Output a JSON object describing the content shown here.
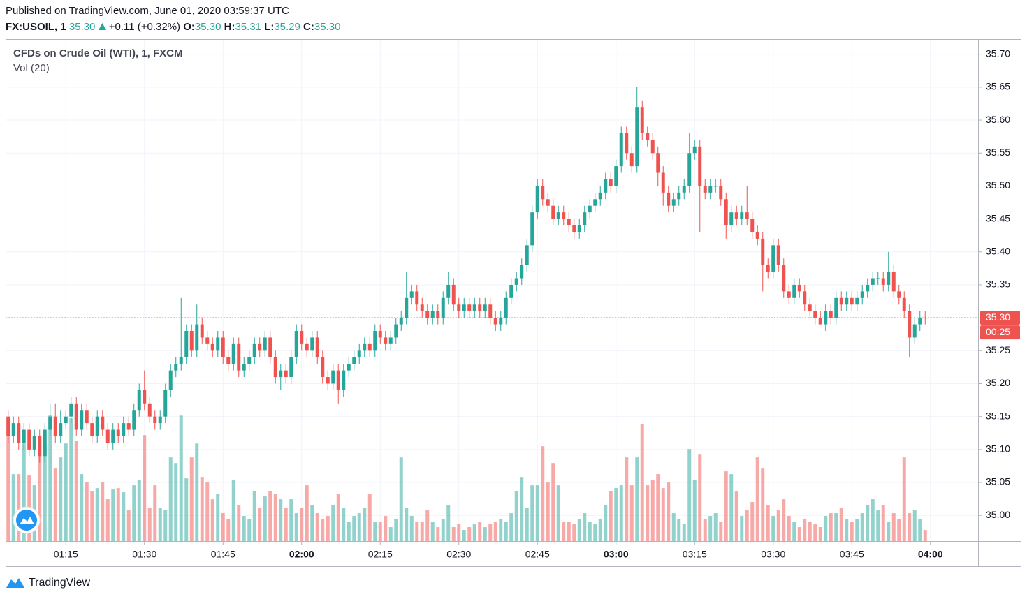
{
  "header": {
    "published": "Published on TradingView.com, June 01, 2020 03:59:37 UTC",
    "symbol": "FX:USOIL, 1",
    "last": "35.30",
    "change": "+0.11 (+0.32%)",
    "ohlc": [
      {
        "label": "O:",
        "value": "35.30"
      },
      {
        "label": "H:",
        "value": "35.31"
      },
      {
        "label": "L:",
        "value": "35.29"
      },
      {
        "label": "C:",
        "value": "35.30"
      }
    ]
  },
  "chart_data": {
    "type": "candlestick",
    "title": "CFDs on Crude Oil (WTI), 1, FXCM",
    "volume_label": "Vol (20)",
    "up_color": "#26a69a",
    "down_color": "#ef5350",
    "grid": true,
    "ylim": [
      34.961,
      35.723
    ],
    "yticks": [
      {
        "value": 35.0,
        "label": "35.00"
      },
      {
        "value": 35.05,
        "label": "35.05"
      },
      {
        "value": 35.1,
        "label": "35.10"
      },
      {
        "value": 35.15,
        "label": "35.15"
      },
      {
        "value": 35.2,
        "label": "35.20"
      },
      {
        "value": 35.25,
        "label": "35.25"
      },
      {
        "value": 35.3,
        "label": "35.30"
      },
      {
        "value": 35.35,
        "label": "35.35"
      },
      {
        "value": 35.4,
        "label": "35.40"
      },
      {
        "value": 35.45,
        "label": "35.45"
      },
      {
        "value": 35.5,
        "label": "35.50"
      },
      {
        "value": 35.55,
        "label": "35.55"
      },
      {
        "value": 35.6,
        "label": "35.60"
      },
      {
        "value": 35.65,
        "label": "35.65"
      },
      {
        "value": 35.7,
        "label": "35.70"
      }
    ],
    "xlim": [
      -0.5,
      185.1
    ],
    "xticks": [
      {
        "value": 11,
        "label": "01:15"
      },
      {
        "value": 26,
        "label": "01:30"
      },
      {
        "value": 41,
        "label": "01:45"
      },
      {
        "value": 56,
        "label": "02:00"
      },
      {
        "value": 71,
        "label": "02:15"
      },
      {
        "value": 86,
        "label": "02:30"
      },
      {
        "value": 101,
        "label": "02:45"
      },
      {
        "value": 116,
        "label": "03:00"
      },
      {
        "value": 131,
        "label": "03:15"
      },
      {
        "value": 146,
        "label": "03:30"
      },
      {
        "value": 161,
        "label": "03:45"
      },
      {
        "value": 176,
        "label": "04:00"
      }
    ],
    "last_price": {
      "value": 35.3,
      "label": "35.30"
    },
    "countdown": "00:25",
    "vlim": [
      0,
      360
    ],
    "ohlc": [
      [
        35.15,
        35.16,
        35.11,
        35.12
      ],
      [
        35.12,
        35.15,
        35.11,
        35.14
      ],
      [
        35.14,
        35.15,
        35.1,
        35.11
      ],
      [
        35.11,
        35.14,
        35.1,
        35.13
      ],
      [
        35.13,
        35.14,
        35.09,
        35.1
      ],
      [
        35.1,
        35.13,
        35.09,
        35.12
      ],
      [
        35.12,
        35.13,
        35.08,
        35.09
      ],
      [
        35.09,
        35.14,
        35.08,
        35.13
      ],
      [
        35.13,
        35.17,
        35.12,
        35.15
      ],
      [
        35.15,
        35.17,
        35.11,
        35.12
      ],
      [
        35.12,
        35.16,
        35.11,
        35.14
      ],
      [
        35.14,
        35.16,
        35.13,
        35.15
      ],
      [
        35.15,
        35.18,
        35.14,
        35.17
      ],
      [
        35.17,
        35.18,
        35.12,
        35.13
      ],
      [
        35.13,
        35.17,
        35.12,
        35.16
      ],
      [
        35.16,
        35.17,
        35.13,
        35.14
      ],
      [
        35.14,
        35.15,
        35.11,
        35.12
      ],
      [
        35.12,
        35.16,
        35.11,
        35.15
      ],
      [
        35.15,
        35.16,
        35.12,
        35.13
      ],
      [
        35.13,
        35.14,
        35.1,
        35.11
      ],
      [
        35.11,
        35.14,
        35.1,
        35.13
      ],
      [
        35.13,
        35.14,
        35.11,
        35.12
      ],
      [
        35.12,
        35.15,
        35.11,
        35.14
      ],
      [
        35.14,
        35.15,
        35.12,
        35.13
      ],
      [
        35.13,
        35.17,
        35.12,
        35.16
      ],
      [
        35.16,
        35.2,
        35.15,
        35.19
      ],
      [
        35.19,
        35.22,
        35.16,
        35.17
      ],
      [
        35.17,
        35.18,
        35.14,
        35.15
      ],
      [
        35.15,
        35.16,
        35.13,
        35.14
      ],
      [
        35.14,
        35.16,
        35.13,
        35.15
      ],
      [
        35.15,
        35.2,
        35.14,
        35.19
      ],
      [
        35.19,
        35.23,
        35.18,
        35.22
      ],
      [
        35.22,
        35.24,
        35.21,
        35.23
      ],
      [
        35.23,
        35.33,
        35.22,
        35.24
      ],
      [
        35.24,
        35.29,
        35.23,
        35.28
      ],
      [
        35.28,
        35.29,
        35.24,
        35.25
      ],
      [
        35.25,
        35.32,
        35.24,
        35.29
      ],
      [
        35.29,
        35.3,
        35.26,
        35.27
      ],
      [
        35.27,
        35.28,
        35.25,
        35.26
      ],
      [
        35.26,
        35.27,
        35.24,
        35.25
      ],
      [
        35.25,
        35.28,
        35.24,
        35.27
      ],
      [
        35.27,
        35.28,
        35.23,
        35.24
      ],
      [
        35.24,
        35.25,
        35.22,
        35.23
      ],
      [
        35.23,
        35.27,
        35.22,
        35.26
      ],
      [
        35.26,
        35.27,
        35.21,
        35.22
      ],
      [
        35.22,
        35.24,
        35.21,
        35.23
      ],
      [
        35.23,
        35.25,
        35.22,
        35.24
      ],
      [
        35.24,
        35.27,
        35.23,
        35.26
      ],
      [
        35.26,
        35.27,
        35.24,
        35.25
      ],
      [
        35.25,
        35.28,
        35.24,
        35.27
      ],
      [
        35.27,
        35.28,
        35.23,
        35.24
      ],
      [
        35.24,
        35.25,
        35.2,
        35.21
      ],
      [
        35.21,
        35.23,
        35.19,
        35.22
      ],
      [
        35.22,
        35.23,
        35.2,
        35.21
      ],
      [
        35.21,
        35.25,
        35.2,
        35.24
      ],
      [
        35.24,
        35.29,
        35.23,
        35.28
      ],
      [
        35.28,
        35.29,
        35.25,
        35.26
      ],
      [
        35.26,
        35.27,
        35.24,
        35.25
      ],
      [
        35.25,
        35.28,
        35.24,
        35.27
      ],
      [
        35.27,
        35.28,
        35.23,
        35.24
      ],
      [
        35.24,
        35.25,
        35.2,
        35.21
      ],
      [
        35.21,
        35.22,
        35.19,
        35.2
      ],
      [
        35.2,
        35.23,
        35.19,
        35.22
      ],
      [
        35.22,
        35.23,
        35.17,
        35.19
      ],
      [
        35.19,
        35.23,
        35.18,
        35.22
      ],
      [
        35.22,
        35.24,
        35.21,
        35.23
      ],
      [
        35.23,
        35.25,
        35.22,
        35.24
      ],
      [
        35.24,
        35.26,
        35.23,
        35.25
      ],
      [
        35.25,
        35.27,
        35.24,
        35.26
      ],
      [
        35.26,
        35.27,
        35.24,
        35.25
      ],
      [
        35.25,
        35.29,
        35.24,
        35.28
      ],
      [
        35.28,
        35.29,
        35.26,
        35.27
      ],
      [
        35.27,
        35.28,
        35.25,
        35.26
      ],
      [
        35.26,
        35.28,
        35.25,
        35.27
      ],
      [
        35.27,
        35.3,
        35.26,
        35.29
      ],
      [
        35.29,
        35.31,
        35.28,
        35.3
      ],
      [
        35.3,
        35.37,
        35.29,
        35.33
      ],
      [
        35.33,
        35.35,
        35.32,
        35.34
      ],
      [
        35.34,
        35.35,
        35.31,
        35.32
      ],
      [
        35.32,
        35.33,
        35.3,
        35.31
      ],
      [
        35.31,
        35.32,
        35.29,
        35.3
      ],
      [
        35.3,
        35.32,
        35.29,
        35.31
      ],
      [
        35.31,
        35.32,
        35.29,
        35.3
      ],
      [
        35.3,
        35.34,
        35.29,
        35.33
      ],
      [
        35.33,
        35.37,
        35.32,
        35.35
      ],
      [
        35.35,
        35.36,
        35.31,
        35.32
      ],
      [
        35.32,
        35.33,
        35.3,
        35.31
      ],
      [
        35.31,
        35.33,
        35.3,
        35.32
      ],
      [
        35.32,
        35.33,
        35.3,
        35.31
      ],
      [
        35.31,
        35.33,
        35.3,
        35.32
      ],
      [
        35.32,
        35.33,
        35.3,
        35.31
      ],
      [
        35.31,
        35.33,
        35.3,
        35.32
      ],
      [
        35.32,
        35.33,
        35.29,
        35.3
      ],
      [
        35.3,
        35.31,
        35.28,
        35.29
      ],
      [
        35.29,
        35.31,
        35.28,
        35.3
      ],
      [
        35.3,
        35.34,
        35.29,
        35.33
      ],
      [
        35.33,
        35.36,
        35.32,
        35.35
      ],
      [
        35.35,
        35.37,
        35.34,
        35.36
      ],
      [
        35.36,
        35.39,
        35.35,
        35.38
      ],
      [
        35.38,
        35.42,
        35.37,
        35.41
      ],
      [
        35.41,
        35.47,
        35.4,
        35.46
      ],
      [
        35.46,
        35.51,
        35.45,
        35.5
      ],
      [
        35.5,
        35.51,
        35.47,
        35.48
      ],
      [
        35.48,
        35.49,
        35.46,
        35.47
      ],
      [
        35.47,
        35.48,
        35.44,
        35.45
      ],
      [
        35.45,
        35.47,
        35.44,
        35.46
      ],
      [
        35.46,
        35.47,
        35.44,
        35.45
      ],
      [
        35.45,
        35.46,
        35.43,
        35.44
      ],
      [
        35.44,
        35.45,
        35.42,
        35.43
      ],
      [
        35.43,
        35.45,
        35.42,
        35.44
      ],
      [
        35.44,
        35.47,
        35.43,
        35.46
      ],
      [
        35.46,
        35.48,
        35.45,
        35.47
      ],
      [
        35.47,
        35.49,
        35.46,
        35.48
      ],
      [
        35.48,
        35.5,
        35.47,
        35.49
      ],
      [
        35.49,
        35.52,
        35.48,
        35.51
      ],
      [
        35.51,
        35.52,
        35.49,
        35.5
      ],
      [
        35.5,
        35.54,
        35.49,
        35.53
      ],
      [
        35.53,
        35.59,
        35.52,
        35.58
      ],
      [
        35.58,
        35.59,
        35.54,
        35.55
      ],
      [
        35.55,
        35.56,
        35.52,
        35.53
      ],
      [
        35.53,
        35.65,
        35.52,
        35.62
      ],
      [
        35.62,
        35.63,
        35.57,
        35.58
      ],
      [
        35.58,
        35.59,
        35.56,
        35.57
      ],
      [
        35.57,
        35.58,
        35.54,
        35.55
      ],
      [
        35.55,
        35.56,
        35.5,
        35.52
      ],
      [
        35.52,
        35.53,
        35.47,
        35.49
      ],
      [
        35.49,
        35.5,
        35.46,
        35.47
      ],
      [
        35.47,
        35.49,
        35.46,
        35.48
      ],
      [
        35.48,
        35.5,
        35.47,
        35.49
      ],
      [
        35.49,
        35.51,
        35.48,
        35.5
      ],
      [
        35.5,
        35.58,
        35.49,
        35.55
      ],
      [
        35.55,
        35.57,
        35.54,
        35.56
      ],
      [
        35.56,
        35.57,
        35.43,
        35.5
      ],
      [
        35.5,
        35.51,
        35.48,
        35.49
      ],
      [
        35.49,
        35.51,
        35.48,
        35.5
      ],
      [
        35.5,
        35.51,
        35.49,
        35.5
      ],
      [
        35.5,
        35.51,
        35.47,
        35.48
      ],
      [
        35.48,
        35.49,
        35.42,
        35.44
      ],
      [
        35.44,
        35.47,
        35.43,
        35.46
      ],
      [
        35.46,
        35.47,
        35.44,
        35.45
      ],
      [
        35.45,
        35.47,
        35.44,
        35.46
      ],
      [
        35.46,
        35.5,
        35.44,
        35.45
      ],
      [
        35.45,
        35.46,
        35.42,
        35.43
      ],
      [
        35.43,
        35.44,
        35.41,
        35.42
      ],
      [
        35.42,
        35.43,
        35.34,
        35.38
      ],
      [
        35.38,
        35.39,
        35.36,
        35.37
      ],
      [
        35.37,
        35.42,
        35.36,
        35.41
      ],
      [
        35.41,
        35.42,
        35.37,
        35.38
      ],
      [
        35.38,
        35.39,
        35.33,
        35.34
      ],
      [
        35.34,
        35.35,
        35.32,
        35.33
      ],
      [
        35.33,
        35.36,
        35.32,
        35.35
      ],
      [
        35.35,
        35.36,
        35.33,
        35.34
      ],
      [
        35.34,
        35.35,
        35.31,
        35.32
      ],
      [
        35.32,
        35.33,
        35.3,
        35.31
      ],
      [
        35.31,
        35.32,
        35.29,
        35.3
      ],
      [
        35.3,
        35.31,
        35.29,
        35.29
      ],
      [
        35.29,
        35.32,
        35.28,
        35.31
      ],
      [
        35.31,
        35.32,
        35.29,
        35.3
      ],
      [
        35.3,
        35.34,
        35.29,
        35.33
      ],
      [
        35.33,
        35.34,
        35.31,
        35.32
      ],
      [
        35.32,
        35.34,
        35.31,
        35.33
      ],
      [
        35.33,
        35.34,
        35.31,
        35.32
      ],
      [
        35.32,
        35.34,
        35.31,
        35.33
      ],
      [
        35.33,
        35.35,
        35.32,
        35.34
      ],
      [
        35.34,
        35.36,
        35.33,
        35.35
      ],
      [
        35.35,
        35.37,
        35.34,
        35.36
      ],
      [
        35.36,
        35.37,
        35.35,
        35.36
      ],
      [
        35.36,
        35.37,
        35.34,
        35.35
      ],
      [
        35.35,
        35.4,
        35.34,
        35.37
      ],
      [
        35.37,
        35.38,
        35.33,
        35.34
      ],
      [
        35.34,
        35.35,
        35.32,
        35.33
      ],
      [
        35.33,
        35.34,
        35.3,
        35.31
      ],
      [
        35.31,
        35.32,
        35.24,
        35.27
      ],
      [
        35.27,
        35.3,
        35.26,
        35.29
      ],
      [
        35.29,
        35.31,
        35.28,
        35.3
      ],
      [
        35.3,
        35.31,
        35.29,
        35.3
      ]
    ],
    "volume": [
      88,
      48,
      48,
      70,
      47,
      40,
      72,
      70,
      90,
      52,
      60,
      70,
      88,
      72,
      48,
      42,
      36,
      38,
      42,
      30,
      37,
      38,
      35,
      22,
      40,
      44,
      76,
      24,
      40,
      24,
      22,
      60,
      56,
      90,
      45,
      60,
      70,
      46,
      42,
      30,
      34,
      20,
      16,
      44,
      26,
      18,
      16,
      36,
      24,
      32,
      36,
      34,
      30,
      24,
      30,
      20,
      24,
      40,
      26,
      20,
      16,
      18,
      26,
      34,
      24,
      14,
      18,
      20,
      24,
      34,
      14,
      14,
      18,
      10,
      16,
      60,
      24,
      18,
      14,
      14,
      22,
      14,
      10,
      16,
      26,
      10,
      12,
      8,
      10,
      12,
      14,
      10,
      12,
      14,
      16,
      14,
      20,
      36,
      46,
      24,
      40,
      40,
      68,
      42,
      56,
      40,
      14,
      14,
      12,
      16,
      20,
      14,
      12,
      16,
      26,
      36,
      38,
      40,
      60,
      40,
      60,
      84,
      40,
      44,
      48,
      38,
      42,
      20,
      16,
      12,
      66,
      44,
      62,
      16,
      18,
      20,
      14,
      50,
      48,
      36,
      18,
      22,
      28,
      60,
      52,
      26,
      18,
      22,
      30,
      18,
      14,
      10,
      16,
      14,
      12,
      10,
      18,
      20,
      20,
      24,
      16,
      14,
      16,
      20,
      26,
      30,
      22,
      26,
      14,
      20,
      16,
      60,
      20,
      22,
      16,
      8
    ]
  },
  "footer": {
    "brand": "TradingView"
  }
}
